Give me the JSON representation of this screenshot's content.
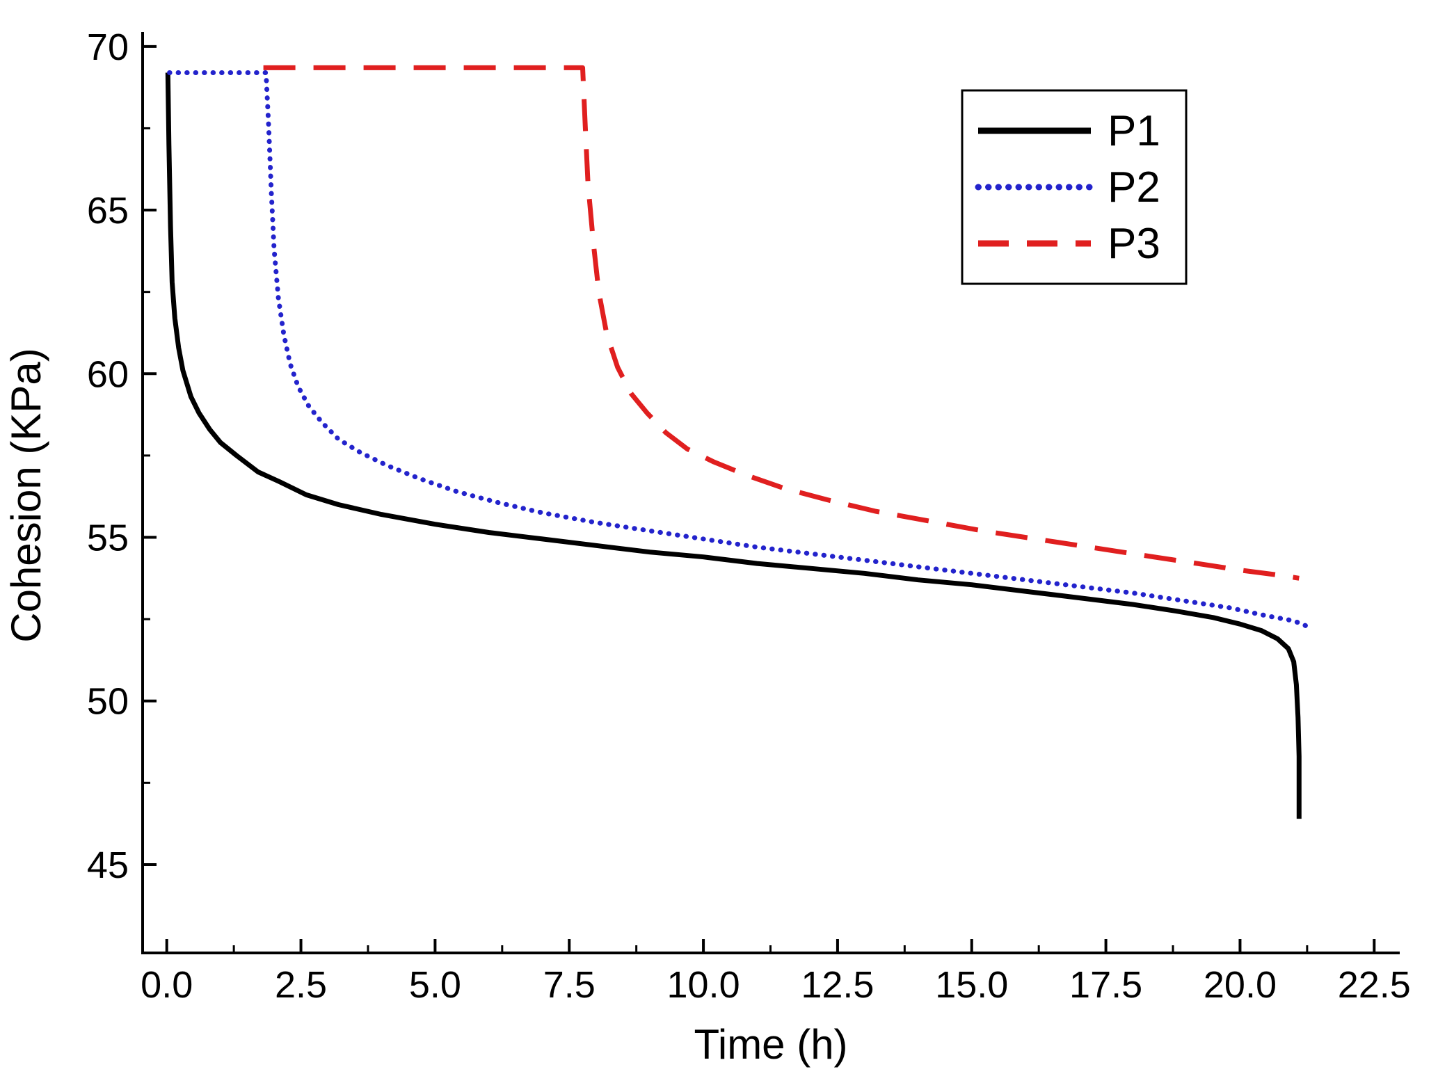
{
  "chart_data": {
    "type": "line",
    "title": "",
    "xlabel": "Time (h)",
    "ylabel": "Cohesion (KPa)",
    "xlim": [
      -0.45,
      22.95
    ],
    "ylim": [
      42.3,
      70.4
    ],
    "grid": false,
    "legend_position": "top-right",
    "xticks": [
      0.0,
      2.5,
      5.0,
      7.5,
      10.0,
      12.5,
      15.0,
      17.5,
      20.0,
      22.5
    ],
    "xtick_labels": [
      "0.0",
      "2.5",
      "5.0",
      "7.5",
      "10.0",
      "12.5",
      "15.0",
      "17.5",
      "20.0",
      "22.5"
    ],
    "yticks": [
      45,
      50,
      55,
      60,
      65,
      70
    ],
    "ytick_labels": [
      "45",
      "50",
      "55",
      "60",
      "65",
      "70"
    ],
    "series": [
      {
        "name": "P1",
        "color": "#000000",
        "style": "solid",
        "points": [
          [
            0.02,
            69.2
          ],
          [
            0.04,
            67.0
          ],
          [
            0.07,
            64.5
          ],
          [
            0.1,
            62.8
          ],
          [
            0.15,
            61.7
          ],
          [
            0.22,
            60.8
          ],
          [
            0.3,
            60.1
          ],
          [
            0.45,
            59.3
          ],
          [
            0.6,
            58.8
          ],
          [
            0.8,
            58.3
          ],
          [
            1.0,
            57.9
          ],
          [
            1.3,
            57.5
          ],
          [
            1.7,
            57.0
          ],
          [
            2.1,
            56.7
          ],
          [
            2.6,
            56.3
          ],
          [
            3.2,
            56.0
          ],
          [
            4.0,
            55.7
          ],
          [
            5.0,
            55.4
          ],
          [
            6.0,
            55.15
          ],
          [
            7.0,
            54.95
          ],
          [
            8.0,
            54.75
          ],
          [
            9.0,
            54.55
          ],
          [
            10.0,
            54.4
          ],
          [
            11.0,
            54.2
          ],
          [
            12.0,
            54.05
          ],
          [
            13.0,
            53.9
          ],
          [
            14.0,
            53.7
          ],
          [
            15.0,
            53.55
          ],
          [
            16.0,
            53.35
          ],
          [
            17.0,
            53.15
          ],
          [
            18.0,
            52.95
          ],
          [
            18.8,
            52.75
          ],
          [
            19.5,
            52.55
          ],
          [
            20.0,
            52.35
          ],
          [
            20.4,
            52.15
          ],
          [
            20.7,
            51.9
          ],
          [
            20.9,
            51.6
          ],
          [
            21.0,
            51.2
          ],
          [
            21.05,
            50.5
          ],
          [
            21.08,
            49.5
          ],
          [
            21.1,
            48.3
          ],
          [
            21.1,
            46.4
          ]
        ]
      },
      {
        "name": "P2",
        "color": "#2323cc",
        "style": "dotted",
        "points": [
          [
            0.05,
            69.2
          ],
          [
            1.85,
            69.2
          ],
          [
            1.9,
            67.5
          ],
          [
            1.95,
            65.5
          ],
          [
            2.0,
            63.8
          ],
          [
            2.08,
            62.3
          ],
          [
            2.18,
            61.2
          ],
          [
            2.3,
            60.3
          ],
          [
            2.45,
            59.6
          ],
          [
            2.65,
            59.0
          ],
          [
            2.9,
            58.5
          ],
          [
            3.2,
            58.0
          ],
          [
            3.6,
            57.6
          ],
          [
            4.1,
            57.2
          ],
          [
            4.7,
            56.8
          ],
          [
            5.4,
            56.4
          ],
          [
            6.2,
            56.05
          ],
          [
            7.0,
            55.75
          ],
          [
            8.0,
            55.45
          ],
          [
            9.0,
            55.2
          ],
          [
            10.0,
            54.95
          ],
          [
            11.0,
            54.7
          ],
          [
            12.0,
            54.5
          ],
          [
            13.0,
            54.3
          ],
          [
            14.0,
            54.1
          ],
          [
            15.0,
            53.9
          ],
          [
            16.0,
            53.7
          ],
          [
            17.0,
            53.5
          ],
          [
            18.0,
            53.3
          ],
          [
            19.0,
            53.05
          ],
          [
            19.8,
            52.85
          ],
          [
            20.5,
            52.6
          ],
          [
            21.0,
            52.45
          ],
          [
            21.3,
            52.25
          ]
        ]
      },
      {
        "name": "P3",
        "color": "#e01f1f",
        "style": "dashed",
        "points": [
          [
            1.8,
            69.35
          ],
          [
            7.75,
            69.35
          ],
          [
            7.8,
            67.5
          ],
          [
            7.85,
            65.8
          ],
          [
            7.95,
            64.0
          ],
          [
            8.05,
            62.5
          ],
          [
            8.2,
            61.2
          ],
          [
            8.4,
            60.2
          ],
          [
            8.65,
            59.4
          ],
          [
            8.95,
            58.8
          ],
          [
            9.3,
            58.2
          ],
          [
            9.7,
            57.7
          ],
          [
            10.2,
            57.3
          ],
          [
            10.8,
            56.9
          ],
          [
            11.5,
            56.5
          ],
          [
            12.3,
            56.15
          ],
          [
            13.2,
            55.8
          ],
          [
            14.2,
            55.5
          ],
          [
            15.2,
            55.2
          ],
          [
            16.2,
            54.95
          ],
          [
            17.2,
            54.7
          ],
          [
            18.2,
            54.45
          ],
          [
            19.2,
            54.2
          ],
          [
            20.0,
            54.0
          ],
          [
            20.7,
            53.85
          ],
          [
            21.1,
            53.75
          ]
        ]
      }
    ]
  }
}
